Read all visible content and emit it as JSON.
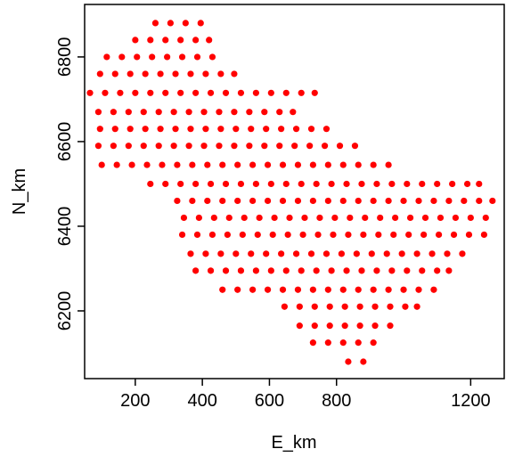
{
  "chart_data": {
    "type": "scatter",
    "xlabel": "E_km",
    "ylabel": "N_km",
    "xlim": [
      49,
      1300
    ],
    "ylim": [
      6040,
      6924
    ],
    "xticks": [
      200,
      400,
      600,
      800,
      1200
    ],
    "yticks": [
      6200,
      6400,
      6600,
      6800
    ],
    "x": [
      260,
      305,
      350,
      395,
      200,
      245,
      290,
      335,
      380,
      420,
      115,
      160,
      205,
      250,
      295,
      340,
      385,
      430,
      95,
      140,
      185,
      230,
      275,
      320,
      365,
      410,
      455,
      495,
      65,
      110,
      155,
      200,
      245,
      290,
      335,
      380,
      425,
      470,
      515,
      560,
      605,
      650,
      695,
      735,
      90,
      135,
      180,
      225,
      270,
      315,
      360,
      405,
      450,
      495,
      540,
      585,
      630,
      670,
      95,
      140,
      185,
      230,
      275,
      320,
      365,
      410,
      455,
      500,
      545,
      590,
      635,
      680,
      725,
      770,
      90,
      135,
      180,
      225,
      270,
      315,
      360,
      405,
      450,
      495,
      540,
      585,
      630,
      675,
      720,
      765,
      810,
      855,
      100,
      145,
      190,
      235,
      280,
      325,
      370,
      415,
      460,
      505,
      550,
      595,
      640,
      685,
      730,
      775,
      820,
      865,
      910,
      955,
      245,
      290,
      335,
      380,
      425,
      470,
      515,
      560,
      605,
      650,
      695,
      740,
      785,
      830,
      875,
      920,
      965,
      1010,
      1055,
      1100,
      1145,
      1190,
      1225,
      325,
      370,
      415,
      460,
      505,
      550,
      595,
      640,
      685,
      730,
      775,
      820,
      865,
      910,
      955,
      1000,
      1045,
      1090,
      1135,
      1180,
      1225,
      1265,
      345,
      390,
      435,
      480,
      525,
      570,
      615,
      660,
      705,
      750,
      795,
      840,
      885,
      930,
      975,
      1020,
      1065,
      1110,
      1155,
      1200,
      1245,
      340,
      385,
      430,
      475,
      520,
      565,
      610,
      655,
      700,
      745,
      790,
      835,
      880,
      925,
      970,
      1015,
      1060,
      1105,
      1150,
      1195,
      1240,
      365,
      410,
      455,
      500,
      545,
      590,
      635,
      680,
      725,
      770,
      815,
      860,
      905,
      950,
      995,
      1040,
      1085,
      1130,
      1175,
      380,
      425,
      470,
      515,
      560,
      605,
      650,
      695,
      740,
      785,
      830,
      875,
      920,
      965,
      1010,
      1055,
      1100,
      1135,
      460,
      505,
      550,
      595,
      640,
      685,
      730,
      775,
      820,
      865,
      910,
      955,
      1000,
      1045,
      1090,
      645,
      690,
      735,
      780,
      825,
      870,
      915,
      960,
      1005,
      1040,
      690,
      735,
      780,
      825,
      870,
      915,
      960,
      730,
      775,
      820,
      865,
      910,
      835,
      880
    ],
    "series": [
      {
        "color": "#ff0000",
        "values": [
          6880,
          6880,
          6880,
          6880,
          6840,
          6840,
          6840,
          6840,
          6840,
          6840,
          6800,
          6800,
          6800,
          6800,
          6800,
          6800,
          6800,
          6800,
          6760,
          6760,
          6760,
          6760,
          6760,
          6760,
          6760,
          6760,
          6760,
          6760,
          6715,
          6715,
          6715,
          6715,
          6715,
          6715,
          6715,
          6715,
          6715,
          6715,
          6715,
          6715,
          6715,
          6715,
          6715,
          6715,
          6670,
          6670,
          6670,
          6670,
          6670,
          6670,
          6670,
          6670,
          6670,
          6670,
          6670,
          6670,
          6670,
          6670,
          6630,
          6630,
          6630,
          6630,
          6630,
          6630,
          6630,
          6630,
          6630,
          6630,
          6630,
          6630,
          6630,
          6630,
          6630,
          6630,
          6590,
          6590,
          6590,
          6590,
          6590,
          6590,
          6590,
          6590,
          6590,
          6590,
          6590,
          6590,
          6590,
          6590,
          6590,
          6590,
          6590,
          6590,
          6545,
          6545,
          6545,
          6545,
          6545,
          6545,
          6545,
          6545,
          6545,
          6545,
          6545,
          6545,
          6545,
          6545,
          6545,
          6545,
          6545,
          6545,
          6545,
          6545,
          6500,
          6500,
          6500,
          6500,
          6500,
          6500,
          6500,
          6500,
          6500,
          6500,
          6500,
          6500,
          6500,
          6500,
          6500,
          6500,
          6500,
          6500,
          6500,
          6500,
          6500,
          6500,
          6500,
          6460,
          6460,
          6460,
          6460,
          6460,
          6460,
          6460,
          6460,
          6460,
          6460,
          6460,
          6460,
          6460,
          6460,
          6460,
          6460,
          6460,
          6460,
          6460,
          6460,
          6460,
          6460,
          6420,
          6420,
          6420,
          6420,
          6420,
          6420,
          6420,
          6420,
          6420,
          6420,
          6420,
          6420,
          6420,
          6420,
          6420,
          6420,
          6420,
          6420,
          6420,
          6420,
          6420,
          6380,
          6380,
          6380,
          6380,
          6380,
          6380,
          6380,
          6380,
          6380,
          6380,
          6380,
          6380,
          6380,
          6380,
          6380,
          6380,
          6380,
          6380,
          6380,
          6380,
          6380,
          6335,
          6335,
          6335,
          6335,
          6335,
          6335,
          6335,
          6335,
          6335,
          6335,
          6335,
          6335,
          6335,
          6335,
          6335,
          6335,
          6335,
          6335,
          6335,
          6295,
          6295,
          6295,
          6295,
          6295,
          6295,
          6295,
          6295,
          6295,
          6295,
          6295,
          6295,
          6295,
          6295,
          6295,
          6295,
          6295,
          6295,
          6250,
          6250,
          6250,
          6250,
          6250,
          6250,
          6250,
          6250,
          6250,
          6250,
          6250,
          6250,
          6250,
          6250,
          6250,
          6210,
          6210,
          6210,
          6210,
          6210,
          6210,
          6210,
          6210,
          6210,
          6210,
          6165,
          6165,
          6165,
          6165,
          6165,
          6165,
          6165,
          6125,
          6125,
          6125,
          6125,
          6125,
          6080,
          6080
        ]
      }
    ]
  }
}
